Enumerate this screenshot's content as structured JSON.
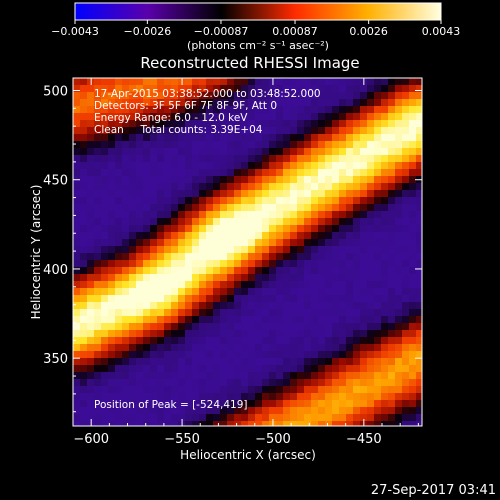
{
  "chart_data": {
    "type": "heatmap",
    "title": "Reconstructed RHESSI Image",
    "xlabel": "Heliocentric X (arcsec)",
    "ylabel": "Heliocentric Y (arcsec)",
    "xlim": [
      -610,
      -418
    ],
    "ylim": [
      312,
      507
    ],
    "x_ticks": [
      -600,
      -550,
      -500,
      -450
    ],
    "y_ticks": [
      350,
      400,
      450,
      500
    ],
    "colorbar": {
      "range": [
        -0.0043,
        0.0043
      ],
      "ticks": [
        -0.0043,
        -0.0026,
        -0.00087,
        0.00087,
        0.0026,
        0.0043
      ],
      "tick_labels": [
        "−0.0043",
        "−0.0026",
        "−0.00087",
        "0.00087",
        "0.0026",
        "0.0043"
      ],
      "unit_label": "(photons cm⁻² s⁻¹ asec⁻²)",
      "colors": [
        "#0000ff",
        "#5a00aa",
        "#000000",
        "#ff2a00",
        "#ffb000",
        "#ffffe0"
      ]
    },
    "annotations": [
      "17-Apr-2015 03:38:52.000 to 03:48:52.000",
      "Detectors: 3F 5F 6F 7F 8F 9F, Att 0",
      "Energy Range: 6.0 - 12.0 keV",
      "Clean     Total counts: 3.39E+04"
    ],
    "peak_label": "Position of Peak = [-524,419]",
    "peak": [
      -524,
      419
    ],
    "bands": [
      {
        "name": "main",
        "center": [
          [
            -610,
            368
          ],
          [
            -565,
            388
          ],
          [
            -524,
            419
          ],
          [
            -470,
            452
          ],
          [
            -430,
            475
          ],
          [
            -418,
            482
          ]
        ],
        "peak": 1.0
      },
      {
        "name": "upper",
        "center": [
          [
            -610,
            490
          ],
          [
            -560,
            505
          ],
          [
            -530,
            520
          ]
        ],
        "peak": 0.6
      },
      {
        "name": "lower",
        "center": [
          [
            -530,
            290
          ],
          [
            -470,
            322
          ],
          [
            -418,
            350
          ]
        ],
        "peak": 0.7
      }
    ]
  },
  "footer": {
    "date": "27-Sep-2017 03:41"
  }
}
